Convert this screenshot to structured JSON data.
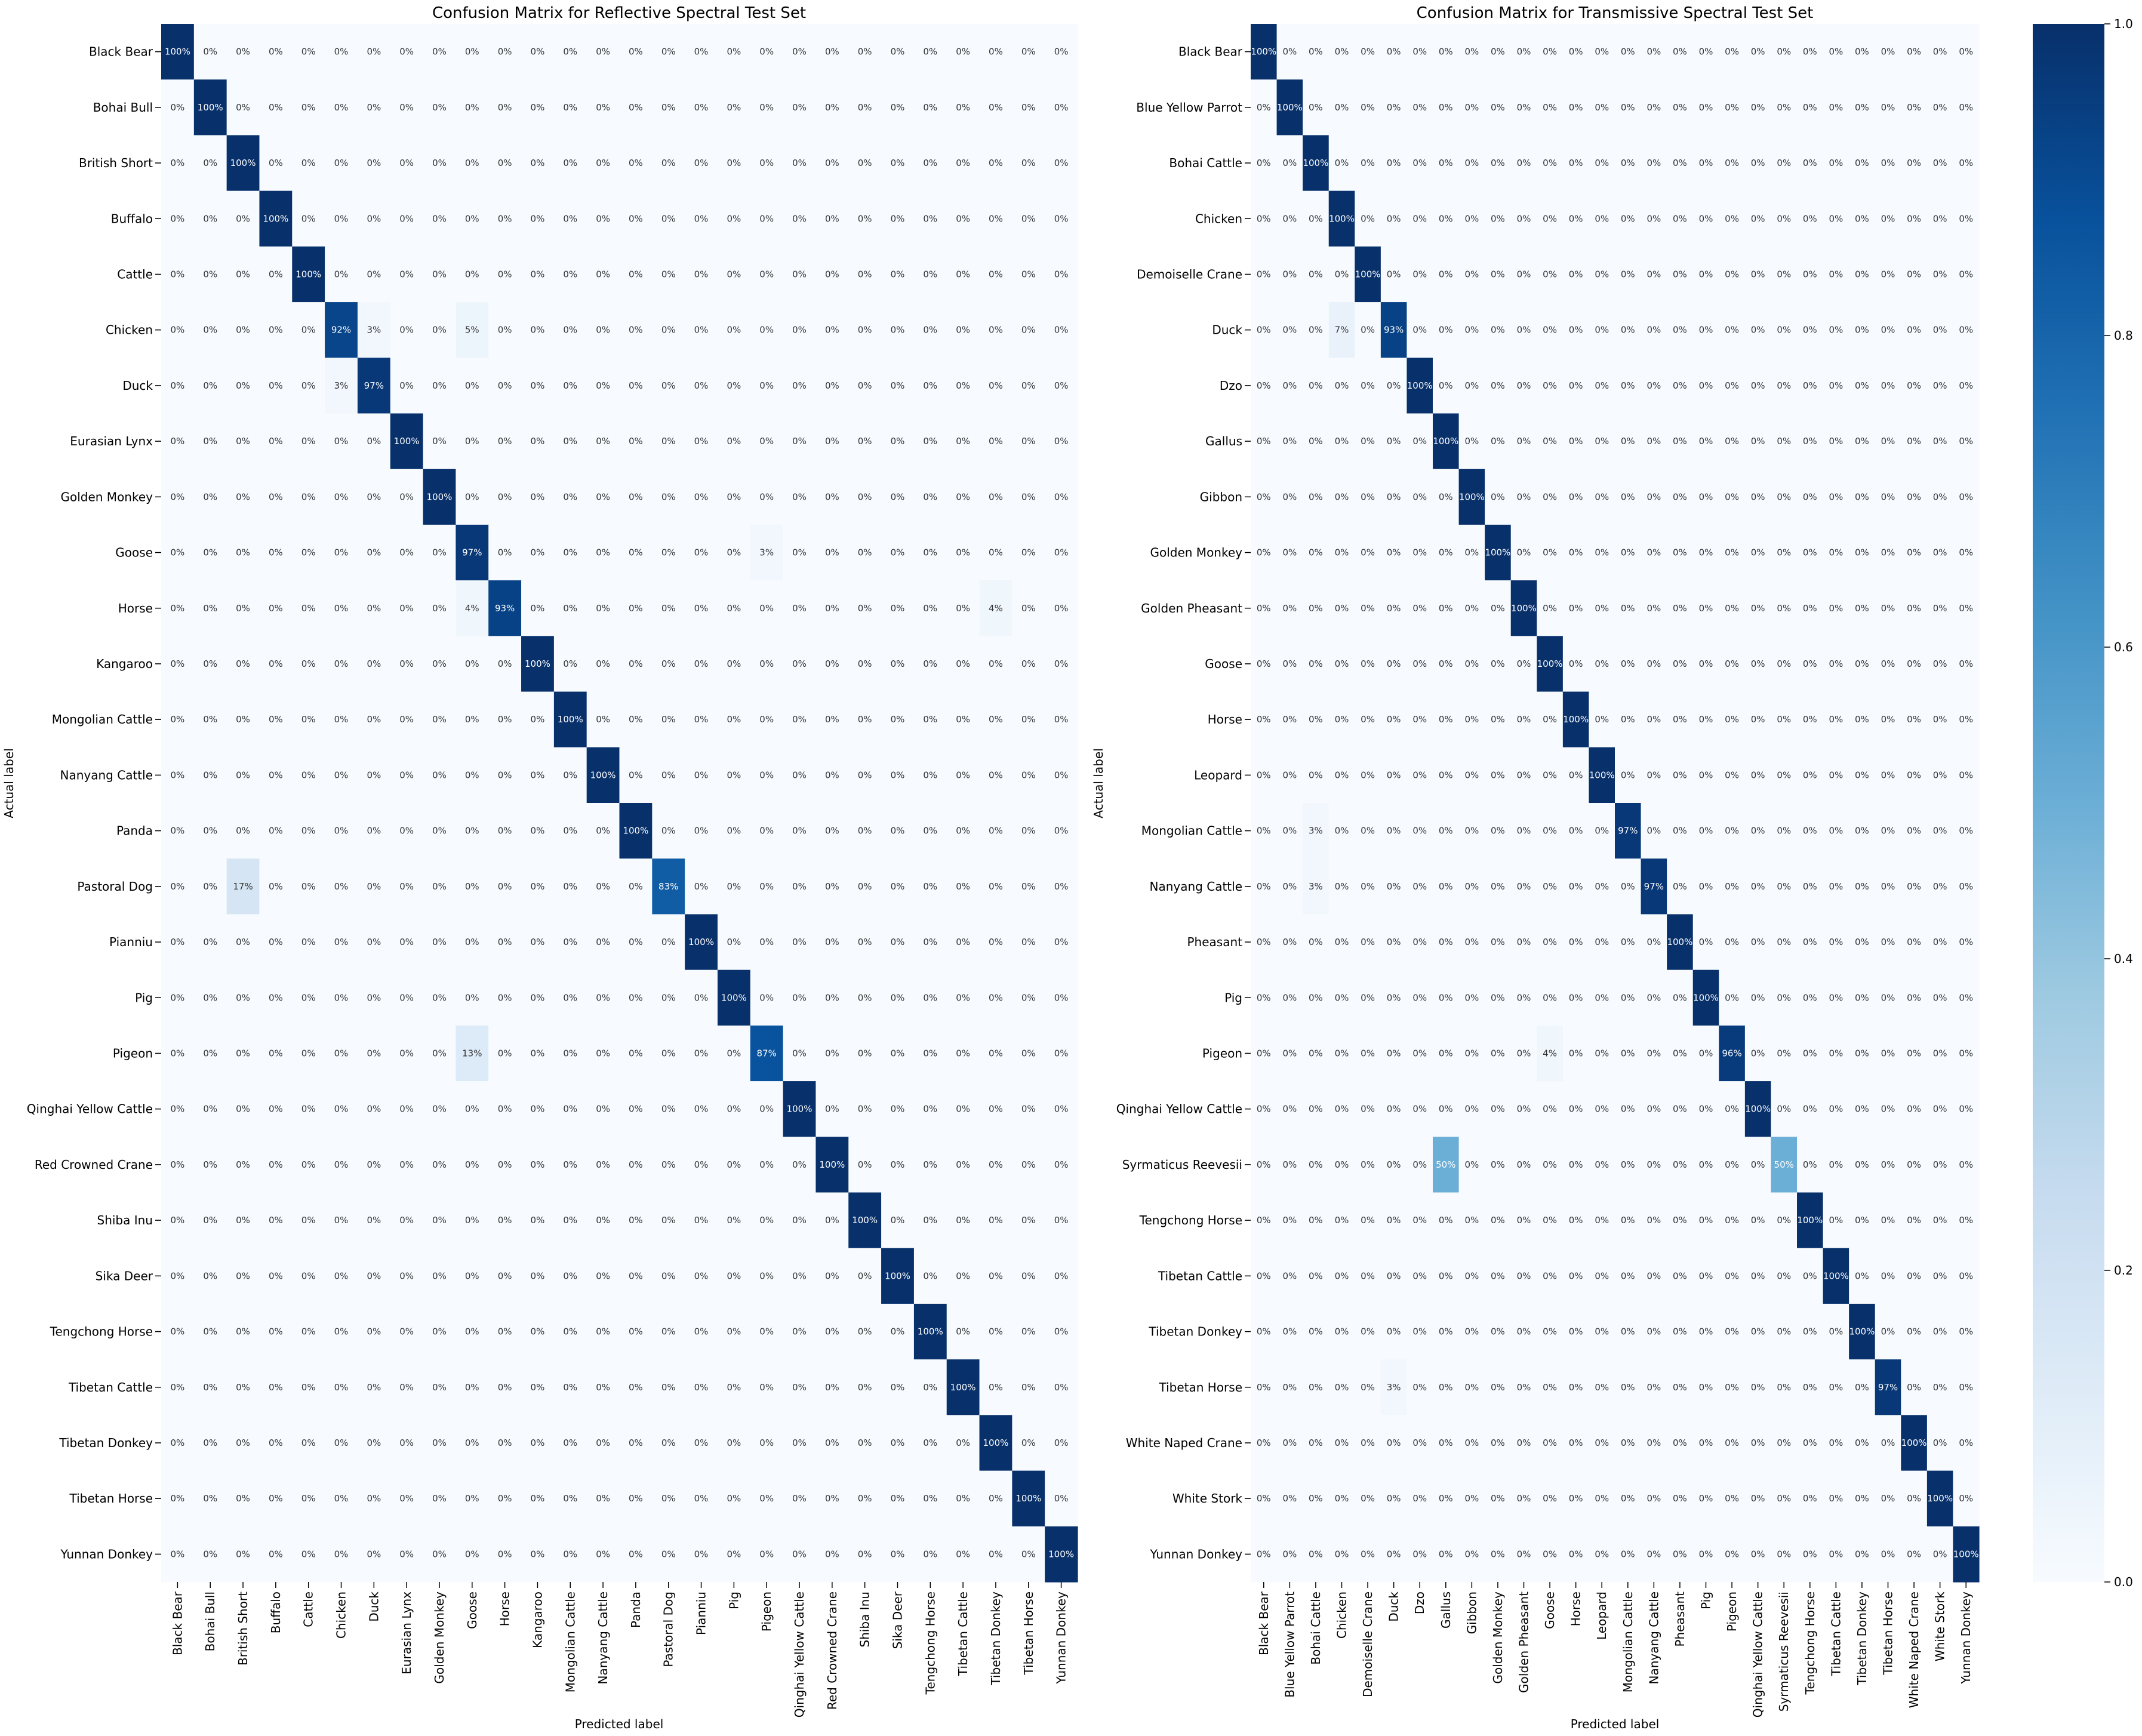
{
  "chart_data": [
    {
      "type": "heatmap",
      "title": "Confusion Matrix for Reflective Spectral Test Set",
      "xlabel": "Predicted label",
      "ylabel": "Actual label",
      "labels": [
        "Black Bear",
        "Bohai Bull",
        "British Short",
        "Buffalo",
        "Cattle",
        "Chicken",
        "Duck",
        "Eurasian Lynx",
        "Golden Monkey",
        "Goose",
        "Horse",
        "Kangaroo",
        "Mongolian Cattle",
        "Nanyang Cattle",
        "Panda",
        "Pastoral Dog",
        "Pianniu",
        "Pig",
        "Pigeon",
        "Qinghai Yellow Cattle",
        "Red Crowned Crane",
        "Shiba Inu",
        "Sika Deer",
        "Tengchong Horse",
        "Tibetan Cattle",
        "Tibetan Donkey",
        "Tibetan Horse",
        "Yunnan Donkey"
      ],
      "diagonal": [
        100,
        100,
        100,
        100,
        100,
        92,
        97,
        100,
        100,
        97,
        93,
        100,
        100,
        100,
        100,
        83,
        100,
        100,
        87,
        100,
        100,
        100,
        100,
        100,
        100,
        100,
        100,
        100
      ],
      "off_diagonal": [
        {
          "row": 5,
          "col": 6,
          "value": 3
        },
        {
          "row": 5,
          "col": 9,
          "value": 5
        },
        {
          "row": 6,
          "col": 5,
          "value": 3
        },
        {
          "row": 9,
          "col": 18,
          "value": 3
        },
        {
          "row": 10,
          "col": 9,
          "value": 4
        },
        {
          "row": 10,
          "col": 25,
          "value": 4
        },
        {
          "row": 15,
          "col": 2,
          "value": 17
        },
        {
          "row": 18,
          "col": 9,
          "value": 13
        }
      ],
      "cell_format": "percent",
      "zero_label": "0%"
    },
    {
      "type": "heatmap",
      "title": "Confusion Matrix for Transmissive Spectral Test Set",
      "xlabel": "Predicted label",
      "ylabel": "Actual label",
      "labels": [
        "Black Bear",
        "Blue Yellow Parrot",
        "Bohai Cattle",
        "Chicken",
        "Demoiselle Crane",
        "Duck",
        "Dzo",
        "Gallus",
        "Gibbon",
        "Golden Monkey",
        "Golden Pheasant",
        "Goose",
        "Horse",
        "Leopard",
        "Mongolian Cattle",
        "Nanyang Cattle",
        "Pheasant",
        "Pig",
        "Pigeon",
        "Qinghai Yellow Cattle",
        "Syrmaticus Reevesii",
        "Tengchong Horse",
        "Tibetan Cattle",
        "Tibetan Donkey",
        "Tibetan Horse",
        "White Naped Crane",
        "White Stork",
        "Yunnan Donkey"
      ],
      "diagonal": [
        100,
        100,
        100,
        100,
        100,
        93,
        100,
        100,
        100,
        100,
        100,
        100,
        100,
        100,
        97,
        97,
        100,
        100,
        96,
        100,
        50,
        100,
        100,
        100,
        97,
        100,
        100,
        100
      ],
      "off_diagonal": [
        {
          "row": 5,
          "col": 3,
          "value": 7
        },
        {
          "row": 14,
          "col": 2,
          "value": 3
        },
        {
          "row": 15,
          "col": 2,
          "value": 3
        },
        {
          "row": 18,
          "col": 11,
          "value": 4
        },
        {
          "row": 20,
          "col": 7,
          "value": 50
        },
        {
          "row": 24,
          "col": 5,
          "value": 3
        }
      ],
      "cell_format": "percent",
      "zero_label": "0%"
    }
  ],
  "colorbar": {
    "ticks": [
      "0.0",
      "0.2",
      "0.4",
      "0.6",
      "0.8",
      "1.0"
    ],
    "tick_values": [
      0,
      0.2,
      0.4,
      0.6,
      0.8,
      1.0
    ],
    "colormap": "Blues",
    "stops": [
      "#f7fbff",
      "#deebf7",
      "#c6dbef",
      "#9ecae1",
      "#6baed6",
      "#4292c6",
      "#2171b5",
      "#08519c",
      "#08306b"
    ]
  }
}
